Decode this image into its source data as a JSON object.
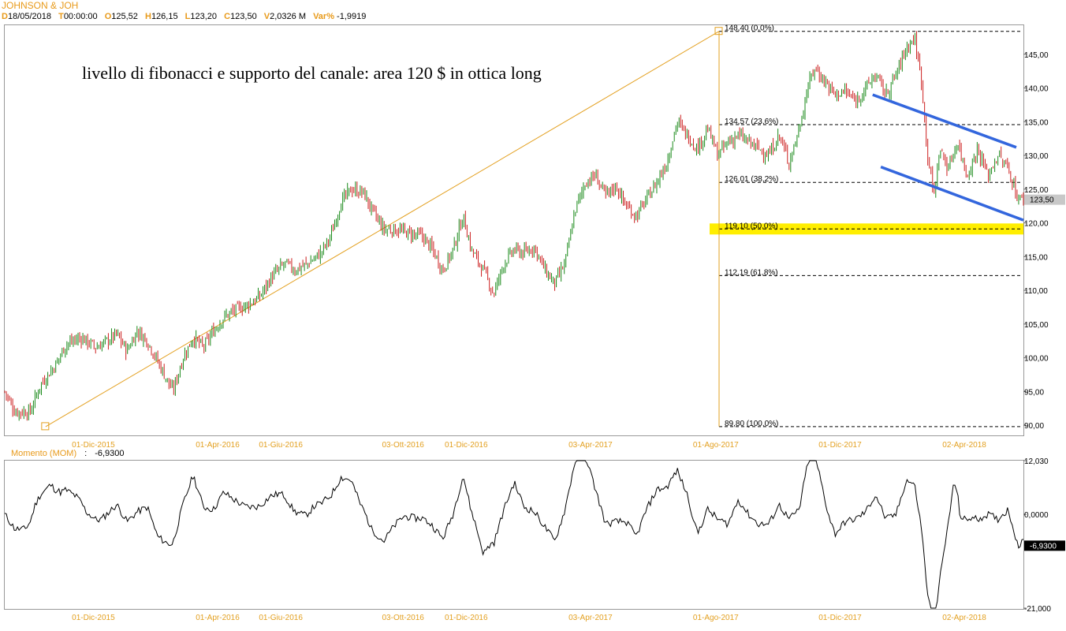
{
  "header": {
    "title": "JOHNSON & JOH",
    "items": [
      {
        "k": "D",
        "v": "18/05/2018"
      },
      {
        "k": "T",
        "v": "00:00:00"
      },
      {
        "k": "O",
        "v": "125,52"
      },
      {
        "k": "H",
        "v": "126,15"
      },
      {
        "k": "L",
        "v": "123,20"
      },
      {
        "k": "C",
        "v": "123,50"
      },
      {
        "k": "V",
        "v": "2,0326 M"
      },
      {
        "k": "Var%",
        "v": "-1,9919"
      }
    ]
  },
  "annotation": "livello di fibonacci e supporto del canale: area 120 $ in ottica long",
  "momentum": {
    "label": "Momento (MOM)",
    "sep": ":",
    "value": "-6,9300",
    "badge": "-6,9300",
    "ticks": [
      {
        "v": 12.03,
        "label": "12,030"
      },
      {
        "v": 0,
        "label": "0,0000"
      },
      {
        "v": -21,
        "label": "-21,000"
      }
    ],
    "ylim": [
      -21,
      12.03
    ]
  },
  "chart_data": [
    {
      "type": "candlestick",
      "ylim": [
        88.5,
        149.3
      ],
      "y_ticks": [
        {
          "v": 145,
          "label": "145,00"
        },
        {
          "v": 140,
          "label": "140,00"
        },
        {
          "v": 135,
          "label": "135,00"
        },
        {
          "v": 130,
          "label": "130,00"
        },
        {
          "v": 125,
          "label": "125,00"
        },
        {
          "v": 120,
          "label": "120,00"
        },
        {
          "v": 115,
          "label": "115,00"
        },
        {
          "v": 110,
          "label": "110,00"
        },
        {
          "v": 105,
          "label": "105,00"
        },
        {
          "v": 100,
          "label": "100,00"
        },
        {
          "v": 95,
          "label": "95,00"
        },
        {
          "v": 90,
          "label": "90,00"
        }
      ],
      "x_ticks": [
        {
          "label": "01-Dic-2015",
          "x": 0.087
        },
        {
          "label": "01-Apr-2016",
          "x": 0.209
        },
        {
          "label": "01-Giu-2016",
          "x": 0.271
        },
        {
          "label": "03-Ott-2016",
          "x": 0.391
        },
        {
          "label": "01-Dic-2016",
          "x": 0.453
        },
        {
          "label": "03-Apr-2017",
          "x": 0.575
        },
        {
          "label": "01-Ago-2017",
          "x": 0.698
        },
        {
          "label": "01-Dic-2017",
          "x": 0.82
        },
        {
          "label": "02-Apr-2018",
          "x": 0.942
        }
      ],
      "last_price": {
        "value": 123.5,
        "label": "123,50"
      },
      "price_path": [
        [
          0,
          95
        ],
        [
          0.01,
          92
        ],
        [
          0.025,
          92
        ],
        [
          0.035,
          96
        ],
        [
          0.05,
          99
        ],
        [
          0.06,
          102
        ],
        [
          0.075,
          103
        ],
        [
          0.09,
          101.5
        ],
        [
          0.1,
          102.5
        ],
        [
          0.11,
          103.5
        ],
        [
          0.12,
          101
        ],
        [
          0.13,
          104
        ],
        [
          0.14,
          102.5
        ],
        [
          0.155,
          98
        ],
        [
          0.165,
          95
        ],
        [
          0.175,
          100
        ],
        [
          0.185,
          103
        ],
        [
          0.195,
          101.5
        ],
        [
          0.205,
          104
        ],
        [
          0.215,
          106
        ],
        [
          0.225,
          107
        ],
        [
          0.24,
          108
        ],
        [
          0.25,
          109
        ],
        [
          0.262,
          112
        ],
        [
          0.275,
          114
        ],
        [
          0.285,
          113
        ],
        [
          0.298,
          114
        ],
        [
          0.31,
          115.5
        ],
        [
          0.32,
          118
        ],
        [
          0.33,
          123
        ],
        [
          0.34,
          125
        ],
        [
          0.352,
          124.5
        ],
        [
          0.36,
          122
        ],
        [
          0.372,
          119
        ],
        [
          0.385,
          119
        ],
        [
          0.395,
          118.5
        ],
        [
          0.41,
          118
        ],
        [
          0.42,
          116
        ],
        [
          0.43,
          113
        ],
        [
          0.44,
          116
        ],
        [
          0.45,
          121
        ],
        [
          0.458,
          116
        ],
        [
          0.47,
          113
        ],
        [
          0.48,
          109.5
        ],
        [
          0.49,
          114
        ],
        [
          0.5,
          116
        ],
        [
          0.51,
          115.5
        ],
        [
          0.52,
          116.5
        ],
        [
          0.53,
          113
        ],
        [
          0.54,
          111
        ],
        [
          0.55,
          114
        ],
        [
          0.56,
          122
        ],
        [
          0.57,
          126
        ],
        [
          0.58,
          127
        ],
        [
          0.59,
          124
        ],
        [
          0.6,
          125.5
        ],
        [
          0.61,
          122.5
        ],
        [
          0.62,
          121
        ],
        [
          0.628,
          123
        ],
        [
          0.64,
          126
        ],
        [
          0.65,
          129
        ],
        [
          0.66,
          135
        ],
        [
          0.67,
          133
        ],
        [
          0.68,
          131
        ],
        [
          0.69,
          134
        ],
        [
          0.7,
          130
        ],
        [
          0.71,
          132
        ],
        [
          0.72,
          133
        ],
        [
          0.73,
          132
        ],
        [
          0.74,
          131
        ],
        [
          0.75,
          130
        ],
        [
          0.76,
          133
        ],
        [
          0.77,
          129
        ],
        [
          0.78,
          134
        ],
        [
          0.788,
          140
        ],
        [
          0.795,
          143
        ],
        [
          0.805,
          141
        ],
        [
          0.815,
          139
        ],
        [
          0.825,
          139.5
        ],
        [
          0.835,
          138
        ],
        [
          0.845,
          140
        ],
        [
          0.855,
          142
        ],
        [
          0.865,
          139
        ],
        [
          0.875,
          142
        ],
        [
          0.885,
          146
        ],
        [
          0.893,
          147.5
        ],
        [
          0.9,
          141
        ],
        [
          0.906,
          130
        ],
        [
          0.912,
          124
        ],
        [
          0.918,
          131
        ],
        [
          0.926,
          128
        ],
        [
          0.935,
          132
        ],
        [
          0.945,
          127
        ],
        [
          0.955,
          131
        ],
        [
          0.965,
          127
        ],
        [
          0.975,
          130
        ],
        [
          0.985,
          128
        ],
        [
          0.995,
          123.5
        ]
      ],
      "fib_levels": [
        {
          "v": 148.4,
          "label": "148,40 (0,0%)"
        },
        {
          "v": 134.57,
          "label": "134,57 (23,6%)"
        },
        {
          "v": 126.01,
          "label": "126,01 (38,2%)"
        },
        {
          "v": 119.1,
          "label": "119,10 (50,0%)",
          "highlight": true
        },
        {
          "v": 112.19,
          "label": "112,19 (61,8%)"
        },
        {
          "v": 89.8,
          "label": "89,80 (100,0%)"
        }
      ],
      "trendline": {
        "from": {
          "x": 0.02,
          "v": 89.8
        },
        "to": {
          "x": 0.697,
          "v": 148.4
        }
      },
      "channel": [
        {
          "from": {
            "x": 0.852,
            "v": 139.0
          },
          "to": {
            "x": 0.993,
            "v": 131.2
          }
        },
        {
          "from": {
            "x": 0.86,
            "v": 128.3
          },
          "to": {
            "x": 1.0,
            "v": 120.4
          }
        }
      ],
      "colors": {
        "up": "#1a8a1a",
        "down": "#cc1f1f",
        "fib": "#e3a020",
        "highlight": "#ffee00",
        "channel": "#3366dd"
      }
    }
  ]
}
